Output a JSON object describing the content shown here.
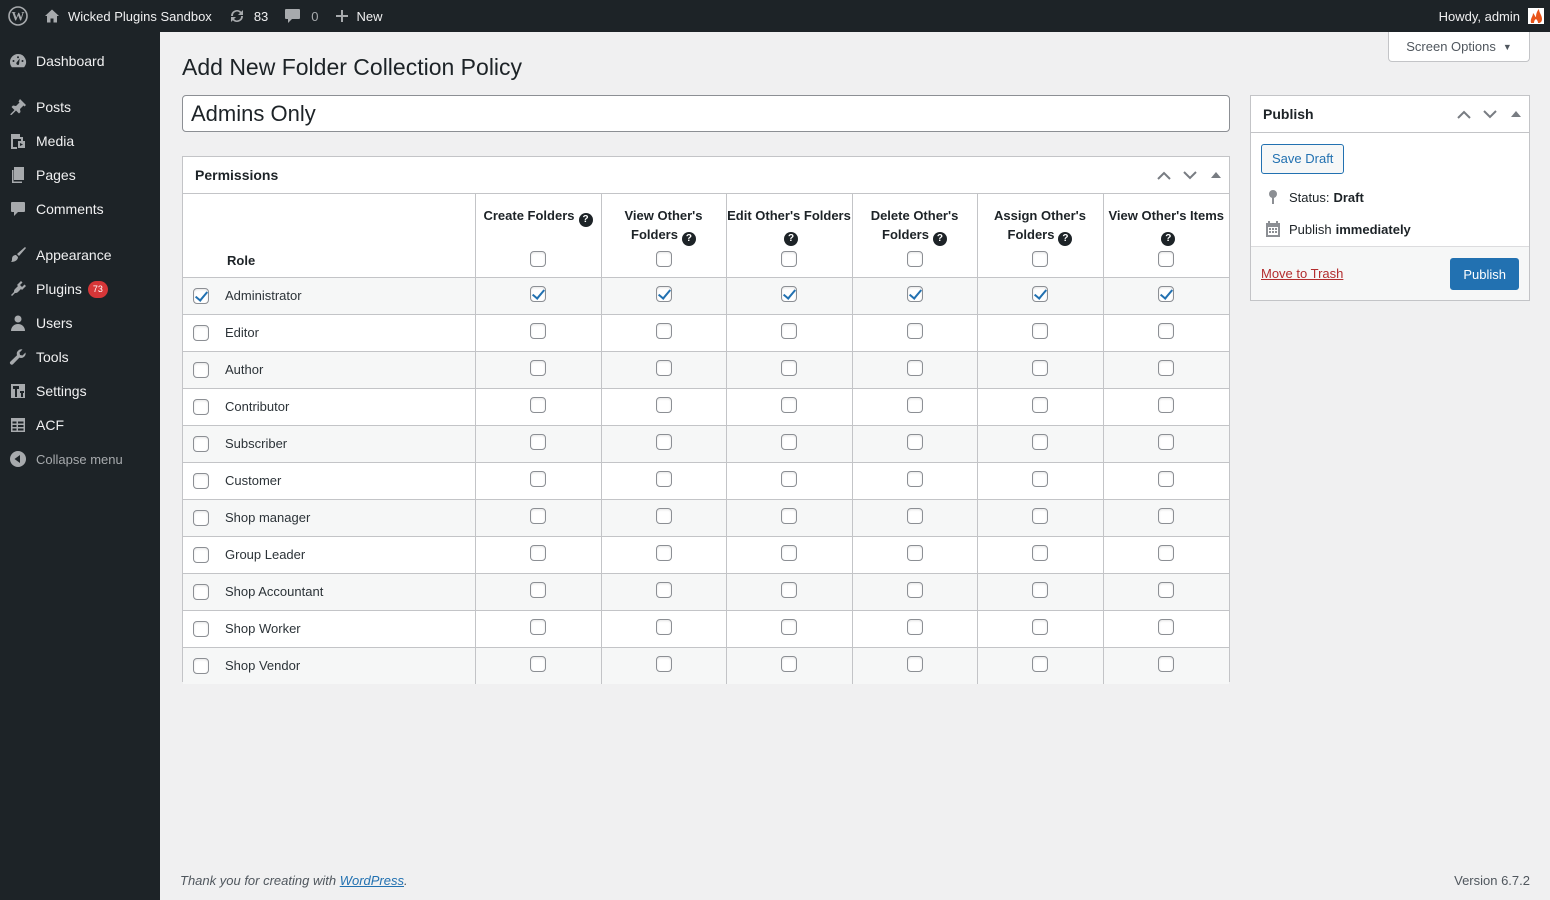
{
  "adminbar": {
    "site_name": "Wicked Plugins Sandbox",
    "updates_count": "83",
    "comments_count": "0",
    "new_label": "New",
    "greeting": "Howdy, admin"
  },
  "sidebar": {
    "items": [
      {
        "label": "Dashboard",
        "icon": "dashboard-icon"
      },
      {
        "label": "Posts",
        "icon": "pin-icon"
      },
      {
        "label": "Media",
        "icon": "media-icon"
      },
      {
        "label": "Pages",
        "icon": "pages-icon"
      },
      {
        "label": "Comments",
        "icon": "comment-icon"
      },
      {
        "label": "Appearance",
        "icon": "paintbrush-icon"
      },
      {
        "label": "Plugins",
        "icon": "plugin-icon",
        "badge": "73"
      },
      {
        "label": "Users",
        "icon": "user-icon"
      },
      {
        "label": "Tools",
        "icon": "wrench-icon"
      },
      {
        "label": "Settings",
        "icon": "settings-icon"
      },
      {
        "label": "ACF",
        "icon": "table-icon"
      }
    ],
    "collapse_label": "Collapse menu"
  },
  "screen_options": {
    "label": "Screen Options"
  },
  "page": {
    "title": "Add New Folder Collection Policy",
    "post_title_value": "Admins Only"
  },
  "permissions": {
    "title": "Permissions",
    "role_header": "Role",
    "columns": [
      {
        "label": "Create Folders"
      },
      {
        "label": "View Other's Folders"
      },
      {
        "label": "Edit Other's Folders"
      },
      {
        "label": "Delete Other's Folders"
      },
      {
        "label": "Assign Other's Folders"
      },
      {
        "label": "View Other's Items"
      }
    ],
    "header_checks": [
      false,
      false,
      false,
      false,
      false,
      false
    ],
    "rows": [
      {
        "role": "Administrator",
        "selected": true,
        "perms": [
          true,
          true,
          true,
          true,
          true,
          true
        ]
      },
      {
        "role": "Editor",
        "selected": false,
        "perms": [
          false,
          false,
          false,
          false,
          false,
          false
        ]
      },
      {
        "role": "Author",
        "selected": false,
        "perms": [
          false,
          false,
          false,
          false,
          false,
          false
        ]
      },
      {
        "role": "Contributor",
        "selected": false,
        "perms": [
          false,
          false,
          false,
          false,
          false,
          false
        ]
      },
      {
        "role": "Subscriber",
        "selected": false,
        "perms": [
          false,
          false,
          false,
          false,
          false,
          false
        ]
      },
      {
        "role": "Customer",
        "selected": false,
        "perms": [
          false,
          false,
          false,
          false,
          false,
          false
        ]
      },
      {
        "role": "Shop manager",
        "selected": false,
        "perms": [
          false,
          false,
          false,
          false,
          false,
          false
        ]
      },
      {
        "role": "Group Leader",
        "selected": false,
        "perms": [
          false,
          false,
          false,
          false,
          false,
          false
        ]
      },
      {
        "role": "Shop Accountant",
        "selected": false,
        "perms": [
          false,
          false,
          false,
          false,
          false,
          false
        ]
      },
      {
        "role": "Shop Worker",
        "selected": false,
        "perms": [
          false,
          false,
          false,
          false,
          false,
          false
        ]
      },
      {
        "role": "Shop Vendor",
        "selected": false,
        "perms": [
          false,
          false,
          false,
          false,
          false,
          false
        ]
      }
    ]
  },
  "publish": {
    "title": "Publish",
    "save_draft_label": "Save Draft",
    "status_label": "Status:",
    "status_value": "Draft",
    "publish_label": "Publish",
    "publish_value": "immediately",
    "trash_label": "Move to Trash",
    "publish_button_label": "Publish"
  },
  "footer": {
    "thanks_text": "Thank you for creating with",
    "wp_link_text": "WordPress",
    "period": ".",
    "version": "Version 6.7.2"
  },
  "colors": {
    "admin_dark": "#1d2327",
    "primary_blue": "#2271b1",
    "badge_red": "#d63638",
    "trash_red": "#b32d2e"
  }
}
